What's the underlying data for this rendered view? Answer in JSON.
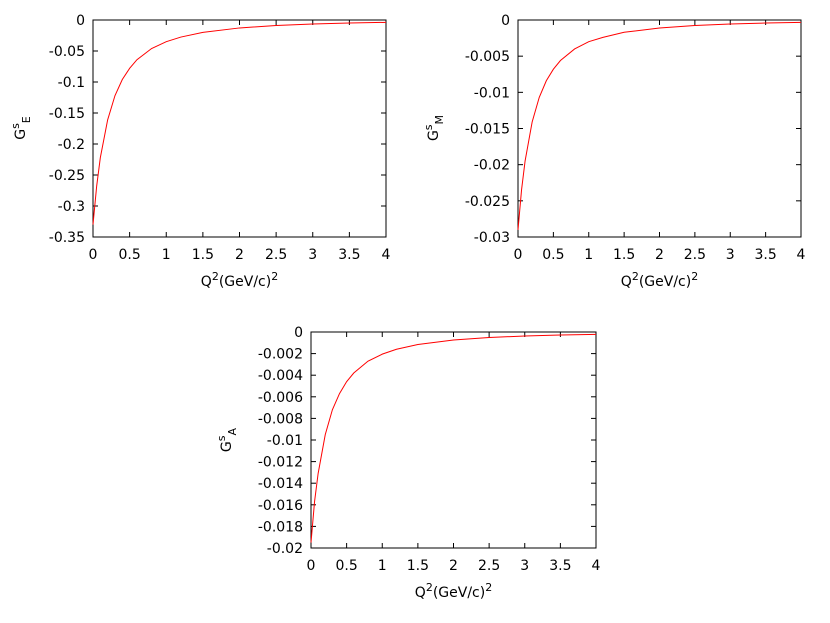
{
  "chart_data": [
    {
      "type": "line",
      "ylabel": "GsE",
      "ylabel_base": "G",
      "ylabel_sup": "s",
      "ylabel_sub": "E",
      "xlabel": "Q2(GeV/c)2",
      "xlabel_parts": [
        "Q",
        "2",
        "(GeV/c)",
        "2"
      ],
      "xlim": [
        0,
        4
      ],
      "ylim": [
        -0.35,
        0
      ],
      "xticks": [
        0,
        0.5,
        1,
        1.5,
        2,
        2.5,
        3,
        3.5,
        4
      ],
      "xtick_labels": [
        "0",
        "0.5",
        "1",
        "1.5",
        "2",
        "2.5",
        "3",
        "3.5",
        "4"
      ],
      "yticks": [
        0,
        -0.05,
        -0.1,
        -0.15,
        -0.2,
        -0.25,
        -0.3,
        -0.35
      ],
      "ytick_labels": [
        "0",
        "-0.05",
        "-0.1",
        "-0.15",
        "-0.2",
        "-0.25",
        "-0.3",
        "-0.35"
      ],
      "grid": false,
      "series": [
        {
          "color": "#ff0000",
          "x": [
            0,
            0.05,
            0.1,
            0.2,
            0.3,
            0.4,
            0.5,
            0.6,
            0.8,
            1.0,
            1.2,
            1.5,
            2.0,
            2.5,
            3.0,
            3.5,
            4.0
          ],
          "y": [
            -0.33,
            -0.268,
            -0.222,
            -0.161,
            -0.122,
            -0.096,
            -0.078,
            -0.064,
            -0.046,
            -0.035,
            -0.0275,
            -0.02,
            -0.0128,
            -0.0088,
            -0.0064,
            -0.0049,
            -0.0038
          ]
        }
      ]
    },
    {
      "type": "line",
      "ylabel": "GsM",
      "ylabel_base": "G",
      "ylabel_sup": "s",
      "ylabel_sub": "M",
      "xlabel": "Q2(GeV/c)2",
      "xlabel_parts": [
        "Q",
        "2",
        "(GeV/c)",
        "2"
      ],
      "xlim": [
        0,
        4
      ],
      "ylim": [
        -0.03,
        0
      ],
      "xticks": [
        0,
        0.5,
        1,
        1.5,
        2,
        2.5,
        3,
        3.5,
        4
      ],
      "xtick_labels": [
        "0",
        "0.5",
        "1",
        "1.5",
        "2",
        "2.5",
        "3",
        "3.5",
        "4"
      ],
      "yticks": [
        0,
        -0.005,
        -0.01,
        -0.015,
        -0.02,
        -0.025,
        -0.03
      ],
      "ytick_labels": [
        "0",
        "-0.005",
        "-0.01",
        "-0.015",
        "-0.02",
        "-0.025",
        "-0.03"
      ],
      "grid": false,
      "series": [
        {
          "color": "#ff0000",
          "x": [
            0,
            0.05,
            0.1,
            0.2,
            0.3,
            0.4,
            0.5,
            0.6,
            0.8,
            1.0,
            1.2,
            1.5,
            2.0,
            2.5,
            3.0,
            3.5,
            4.0
          ],
          "y": [
            -0.029,
            -0.0235,
            -0.0195,
            -0.0141,
            -0.0107,
            -0.0084,
            -0.0068,
            -0.0056,
            -0.004,
            -0.003,
            -0.0024,
            -0.0017,
            -0.0011,
            -0.00076,
            -0.00055,
            -0.00042,
            -0.00033
          ]
        }
      ]
    },
    {
      "type": "line",
      "ylabel": "GsA",
      "ylabel_base": "G",
      "ylabel_sup": "s",
      "ylabel_sub": "A",
      "xlabel": "Q2(GeV/c)2",
      "xlabel_parts": [
        "Q",
        "2",
        "(GeV/c)",
        "2"
      ],
      "xlim": [
        0,
        4
      ],
      "ylim": [
        -0.02,
        0
      ],
      "xticks": [
        0,
        0.5,
        1,
        1.5,
        2,
        2.5,
        3,
        3.5,
        4
      ],
      "xtick_labels": [
        "0",
        "0.5",
        "1",
        "1.5",
        "2",
        "2.5",
        "3",
        "3.5",
        "4"
      ],
      "yticks": [
        0,
        -0.002,
        -0.004,
        -0.006,
        -0.008,
        -0.01,
        -0.012,
        -0.014,
        -0.016,
        -0.018,
        -0.02
      ],
      "ytick_labels": [
        "0",
        "-0.002",
        "-0.004",
        "-0.006",
        "-0.008",
        "-0.01",
        "-0.012",
        "-0.014",
        "-0.016",
        "-0.018",
        "-0.02"
      ],
      "grid": false,
      "series": [
        {
          "color": "#ff0000",
          "x": [
            0,
            0.05,
            0.1,
            0.2,
            0.3,
            0.4,
            0.5,
            0.6,
            0.8,
            1.0,
            1.2,
            1.5,
            2.0,
            2.5,
            3.0,
            3.5,
            4.0
          ],
          "y": [
            -0.0195,
            -0.0157,
            -0.0131,
            -0.0095,
            -0.0072,
            -0.0057,
            -0.0046,
            -0.0038,
            -0.0027,
            -0.00205,
            -0.0016,
            -0.00116,
            -0.00074,
            -0.00051,
            -0.00037,
            -0.00028,
            -0.00022
          ]
        }
      ]
    }
  ]
}
